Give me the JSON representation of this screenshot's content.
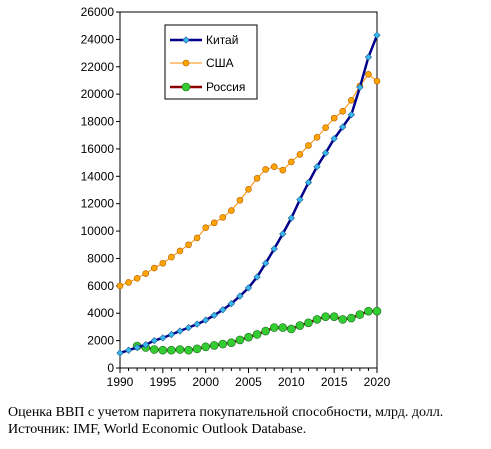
{
  "chart_data": {
    "type": "line",
    "xlim": [
      1990,
      2020
    ],
    "ylim": [
      0,
      26000
    ],
    "x_ticks": [
      "1990",
      "1995",
      "2000",
      "2005",
      "2010",
      "2015",
      "2020"
    ],
    "y_ticks": [
      "0",
      "2000",
      "4000",
      "6000",
      "8000",
      "10000",
      "12000",
      "14000",
      "16000",
      "18000",
      "20000",
      "22000",
      "24000",
      "26000"
    ],
    "grid": false,
    "legend_position": "top-center",
    "years": [
      1990,
      1991,
      1992,
      1993,
      1994,
      1995,
      1996,
      1997,
      1998,
      1999,
      2000,
      2001,
      2002,
      2003,
      2004,
      2005,
      2006,
      2007,
      2008,
      2009,
      2010,
      2011,
      2012,
      2013,
      2014,
      2015,
      2016,
      2017,
      2018,
      2019,
      2020
    ],
    "series": [
      {
        "name": "Китай",
        "color": "#00008b",
        "marker": "diamond",
        "marker_color": "#38b8f0",
        "x_start": 1990,
        "values": [
          1100,
          1300,
          1500,
          1700,
          2000,
          2200,
          2450,
          2700,
          2950,
          3200,
          3500,
          3850,
          4250,
          4700,
          5250,
          5850,
          6650,
          7650,
          8700,
          9800,
          10950,
          12300,
          13550,
          14700,
          15700,
          16750,
          17600,
          18500,
          20500,
          22700,
          24300
        ]
      },
      {
        "name": "США",
        "color": "#ff8c00",
        "marker": "circle",
        "marker_color": "#ffa500",
        "x_start": 1990,
        "values": [
          6000,
          6250,
          6550,
          6900,
          7300,
          7650,
          8100,
          8550,
          9000,
          9500,
          10250,
          10600,
          11000,
          11500,
          12250,
          13050,
          13850,
          14500,
          14700,
          14450,
          15050,
          15600,
          16250,
          16850,
          17550,
          18250,
          18750,
          19550,
          20600,
          21450,
          20950
        ]
      },
      {
        "name": "Россия",
        "color": "#8b0000",
        "marker": "circle",
        "marker_color": "#33cc33",
        "x_start": 1992,
        "values": [
          1600,
          1500,
          1350,
          1300,
          1300,
          1350,
          1300,
          1400,
          1550,
          1650,
          1750,
          1850,
          2050,
          2250,
          2450,
          2700,
          2950,
          2950,
          2850,
          3100,
          3300,
          3550,
          3750,
          3750,
          3550,
          3650,
          3900,
          4150,
          4150
        ]
      }
    ]
  },
  "caption": {
    "line1": "Оценка ВВП с учетом паритета покупательной способности, млрд. долл.",
    "line2": "Источник:  IMF, World Economic Outlook Database."
  }
}
